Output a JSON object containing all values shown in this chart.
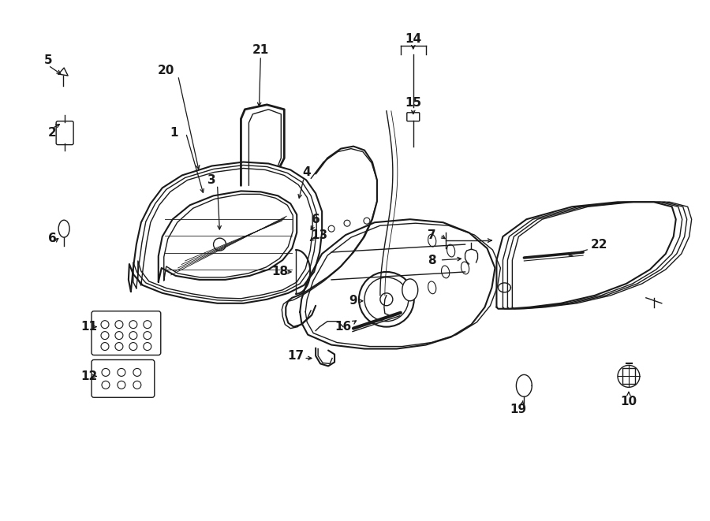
{
  "bg_color": "#ffffff",
  "line_color": "#1a1a1a",
  "fig_width": 9.0,
  "fig_height": 6.61,
  "dpi": 100,
  "font_size": 11
}
